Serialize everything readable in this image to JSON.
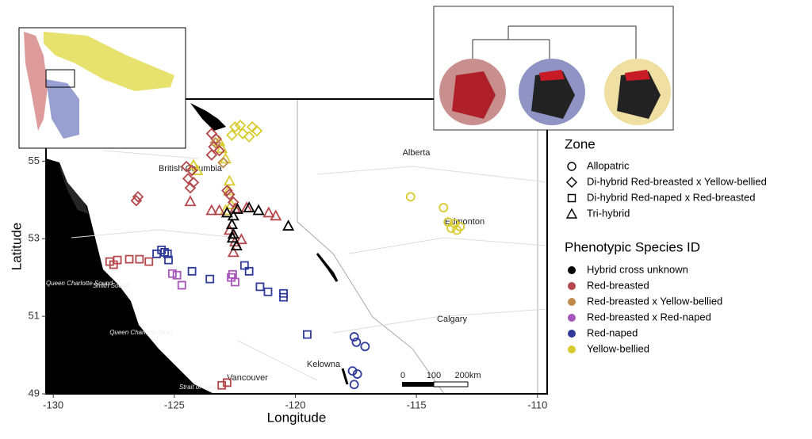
{
  "chart_data": {
    "type": "scatter",
    "xlabel": "Longitude",
    "ylabel": "Latitude",
    "xlim": [
      -130.3,
      -109.6
    ],
    "ylim": [
      49,
      56.6
    ],
    "xticks": [
      -130,
      -125,
      -120,
      -115,
      -110
    ],
    "yticks": [
      49,
      51,
      53,
      55
    ],
    "annotations": [
      "British Columbia",
      "Alberta",
      "Edmonton",
      "Calgary",
      "Vancouver",
      "Kelowna",
      "Queen Charlotte Sound",
      "Smith Sound",
      "Queen Charlotte Strait",
      "Strait of Georgia"
    ],
    "scale_bar": [
      "0",
      "100",
      "200km"
    ],
    "zone_legend": {
      "title": "Zone",
      "entries": [
        {
          "name": "Allopatric",
          "shape": "circle"
        },
        {
          "name": "Di-hybrid Red-breasted x Yellow-bellied",
          "shape": "diamond"
        },
        {
          "name": "Di-hybrid Red-naped x Red-breasted",
          "shape": "square"
        },
        {
          "name": "Tri-hybrid",
          "shape": "triangle"
        }
      ]
    },
    "color_legend": {
      "title": "Phenotypic Species ID",
      "entries": [
        {
          "name": "Hybrid cross unknown",
          "color": "#000000"
        },
        {
          "name": "Red-breasted",
          "color": "#b5474b"
        },
        {
          "name": "Red-breasted x Yellow-bellied",
          "color": "#bf8a4c"
        },
        {
          "name": "Red-breasted x Red-naped",
          "color": "#a655b8"
        },
        {
          "name": "Red-naped",
          "color": "#2f3a9a"
        },
        {
          "name": "Yellow-bellied",
          "color": "#d8cb2e"
        }
      ]
    },
    "series": [
      {
        "name": "Yellow-bellied",
        "zone": "Allopatric",
        "x": [
          -115.24,
          -113.88,
          -113.69,
          -113.43,
          -113.33,
          -113.2,
          -113.56
        ],
        "values": [
          54.08,
          53.8,
          53.43,
          53.39,
          53.22,
          53.31,
          53.27
        ]
      },
      {
        "name": "Yellow-bellied",
        "zone": "Di-hybrid Red-breasted x Yellow-bellied",
        "x": [
          -122.49,
          -122.27,
          -121.78,
          -121.59,
          -122.62,
          -122.17,
          -121.91
        ],
        "values": [
          55.88,
          55.92,
          55.88,
          55.78,
          55.67,
          55.71,
          55.63
        ]
      },
      {
        "name": "Yellow-bellied",
        "zone": "Tri-hybrid",
        "x": [
          -124.21,
          -124.05,
          -123.14,
          -123.04,
          -122.88,
          -122.75,
          -122.65,
          -122.88,
          -122.72
        ],
        "values": [
          54.9,
          54.76,
          55.51,
          55.33,
          55.06,
          54.24,
          53.88,
          53.73,
          54.49
        ]
      },
      {
        "name": "Red-breasted",
        "zone": "Di-hybrid Red-breasted x Yellow-bellied",
        "x": [
          -123.46,
          -123.27,
          -123.37,
          -123.14,
          -124.5,
          -124.27,
          -124.43,
          -124.21,
          -124.34,
          -126.5,
          -126.57,
          -122.82,
          -122.72,
          -122.56,
          -123.46
        ],
        "values": [
          55.71,
          55.57,
          55.37,
          55.27,
          54.86,
          54.76,
          54.55,
          54.45,
          54.31,
          54.08,
          53.98,
          54.24,
          54.14,
          53.94,
          55.16
        ]
      },
      {
        "name": "Red-breasted",
        "zone": "Tri-hybrid",
        "x": [
          -124.34,
          -123.46,
          -123.14,
          -122.49,
          -122.01,
          -121.1,
          -120.81,
          -122.72,
          -122.49,
          -122.23,
          -122.56
        ],
        "values": [
          53.96,
          53.73,
          53.73,
          53.78,
          53.8,
          53.67,
          53.59,
          53.22,
          52.92,
          52.98,
          52.65
        ]
      },
      {
        "name": "Red-breasted",
        "zone": "Di-hybrid Red-naped x Red-breasted",
        "x": [
          -127.67,
          -127.35,
          -126.86,
          -126.44,
          -126.05,
          -127.51,
          -123.04,
          -122.82
        ],
        "values": [
          52.41,
          52.45,
          52.47,
          52.47,
          52.41,
          52.33,
          49.22,
          49.29
        ]
      },
      {
        "name": "Hybrid cross unknown",
        "zone": "Tri-hybrid",
        "x": [
          -122.82,
          -122.56,
          -122.39,
          -121.91,
          -121.52,
          -120.29,
          -122.62,
          -122.56,
          -122.43,
          -122.59
        ],
        "values": [
          53.67,
          53.59,
          53.76,
          53.8,
          53.73,
          53.33,
          53.37,
          53.12,
          52.82,
          53.02
        ]
      },
      {
        "name": "Red-naped",
        "zone": "Di-hybrid Red-naped x Red-breasted",
        "x": [
          -125.53,
          -125.4,
          -125.28,
          -125.73,
          -125.24,
          -124.27,
          -123.53,
          -122.1,
          -121.91,
          -121.46,
          -121.13,
          -120.49,
          -120.49,
          -119.51
        ],
        "values": [
          52.71,
          52.65,
          52.61,
          52.61,
          52.45,
          52.16,
          51.96,
          52.31,
          52.16,
          51.76,
          51.63,
          51.59,
          51.49,
          50.53
        ]
      },
      {
        "name": "Red-naped",
        "zone": "Allopatric",
        "x": [
          -117.57,
          -117.48,
          -117.12,
          -117.64,
          -117.44,
          -117.57
        ],
        "values": [
          50.47,
          50.33,
          50.22,
          49.59,
          49.51,
          49.24
        ]
      },
      {
        "name": "Red-breasted x Red-naped",
        "zone": "Di-hybrid Red-naped x Red-breasted",
        "x": [
          -125.08,
          -124.89,
          -124.69,
          -122.65,
          -122.49,
          -122.59
        ],
        "values": [
          52.1,
          52.06,
          51.8,
          52.0,
          51.88,
          52.08
        ]
      },
      {
        "name": "Red-breasted x Yellow-bellied",
        "zone": "Di-hybrid Red-breasted x Yellow-bellied",
        "x": [
          -123.3,
          -122.98
        ],
        "values": [
          55.47,
          54.96
        ]
      }
    ]
  }
}
